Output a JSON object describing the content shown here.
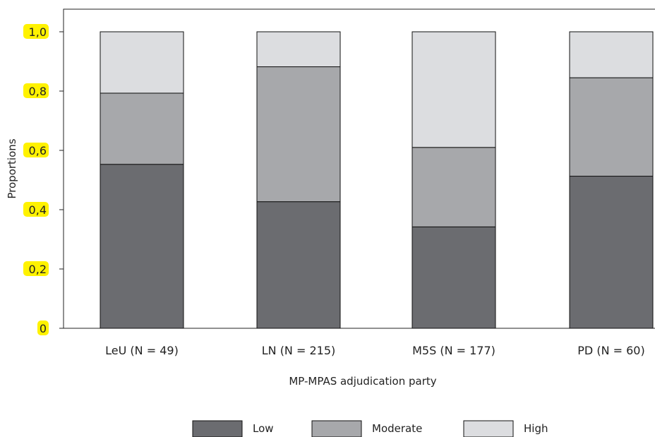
{
  "chart_data": {
    "type": "bar",
    "stacked": true,
    "title": "",
    "xlabel": "MP-MPAS adjudication party",
    "ylabel": "Proportions",
    "ylim": [
      0,
      1.0
    ],
    "yticks": [
      "0",
      "0,2",
      "0,4",
      "0,6",
      "0,8",
      "1,0"
    ],
    "ytick_values": [
      0,
      0.2,
      0.4,
      0.6,
      0.8,
      1.0
    ],
    "ytick_highlight_color": "#fff200",
    "categories": [
      "LeU (N = 49)",
      "LN (N = 215)",
      "M5S (N = 177)",
      "PD (N = 60)"
    ],
    "series": [
      {
        "name": "Low",
        "color": "#6b6c70",
        "values": [
          0.553,
          0.427,
          0.342,
          0.513
        ]
      },
      {
        "name": "Moderate",
        "color": "#a7a8ab",
        "values": [
          0.24,
          0.455,
          0.268,
          0.332
        ]
      },
      {
        "name": "High",
        "color": "#dcdde0",
        "values": [
          0.207,
          0.118,
          0.39,
          0.155
        ]
      }
    ],
    "legend_position": "bottom",
    "grid": false
  }
}
